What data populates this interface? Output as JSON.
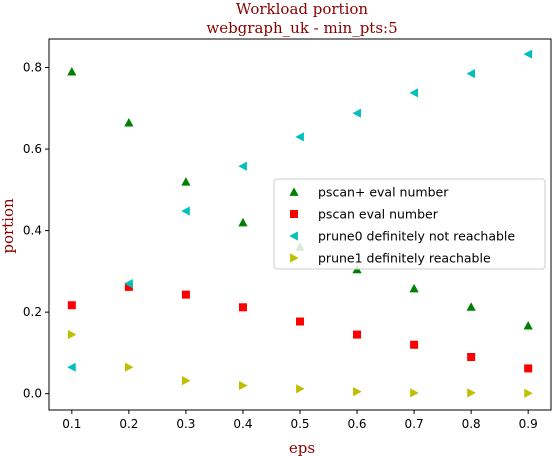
{
  "chart_data": {
    "type": "scatter",
    "title": "Workload portion",
    "subtitle": "webgraph_uk - min_pts:5",
    "xlabel": "eps",
    "ylabel": "portion",
    "xlim": [
      0.06,
      0.94
    ],
    "ylim": [
      -0.04,
      0.87
    ],
    "xticks": [
      "0.1",
      "0.2",
      "0.3",
      "0.4",
      "0.5",
      "0.6",
      "0.7",
      "0.8",
      "0.9"
    ],
    "yticks": [
      "0.0",
      "0.2",
      "0.4",
      "0.6",
      "0.8"
    ],
    "x": [
      0.1,
      0.2,
      0.3,
      0.4,
      0.5,
      0.6,
      0.7,
      0.8,
      0.9
    ],
    "legend_position": "center-right",
    "grid": false,
    "series": [
      {
        "name": "pscan+ eval number",
        "marker": "triangle-up",
        "color": "#008000",
        "values": [
          0.79,
          0.665,
          0.52,
          0.42,
          0.36,
          0.305,
          0.258,
          0.213,
          0.167
        ]
      },
      {
        "name": "pscan eval number",
        "marker": "square",
        "color": "#ff0000",
        "values": [
          0.217,
          0.262,
          0.243,
          0.212,
          0.177,
          0.145,
          0.12,
          0.09,
          0.062
        ]
      },
      {
        "name": "prune0 definitely not reachable",
        "marker": "triangle-left",
        "color": "#00bfbf",
        "values": [
          0.065,
          0.27,
          0.448,
          0.558,
          0.63,
          0.688,
          0.738,
          0.785,
          0.833
        ]
      },
      {
        "name": "prune1 definitely reachable",
        "marker": "triangle-right",
        "color": "#bfbf00",
        "values": [
          0.145,
          0.065,
          0.032,
          0.02,
          0.012,
          0.005,
          0.002,
          0.002,
          0.001
        ]
      }
    ]
  }
}
